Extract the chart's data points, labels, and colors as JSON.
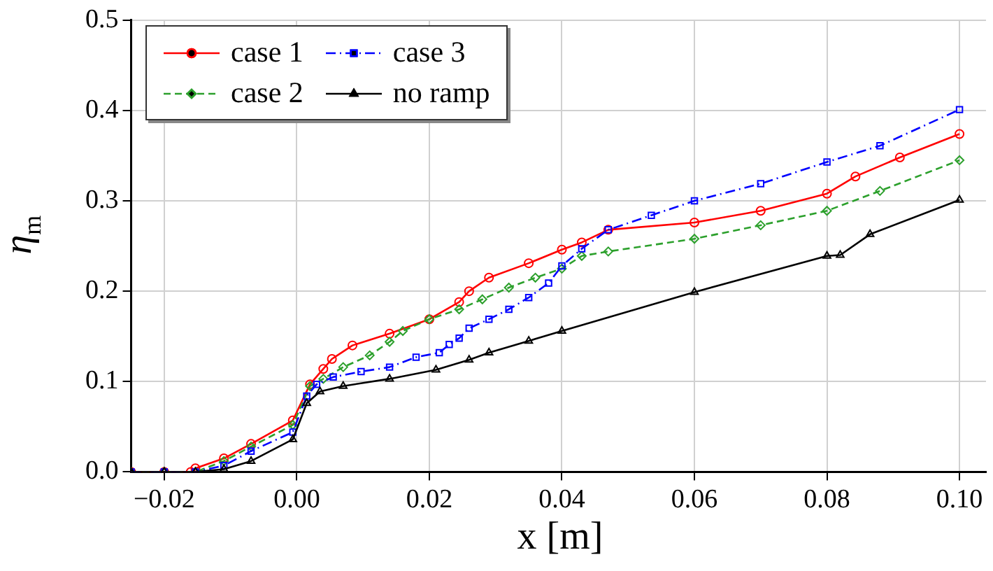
{
  "chart_data": {
    "type": "line",
    "xlabel": "x [m]",
    "ylabel": "η$_{m}$",
    "xlim": [
      -0.025,
      0.104
    ],
    "xticks": [
      {
        "value": -0.02,
        "label": "−0.02"
      },
      {
        "value": 0,
        "label": "0.00"
      },
      {
        "value": 0.02,
        "label": "0.02"
      },
      {
        "value": 0.04,
        "label": "0.04"
      },
      {
        "value": 0.06,
        "label": "0.06"
      },
      {
        "value": 0.08,
        "label": "0.08"
      },
      {
        "value": 0.1,
        "label": "0.10"
      }
    ],
    "ylim": [
      0,
      0.5
    ],
    "yticks": [
      {
        "value": 0,
        "label": "0.0"
      },
      {
        "value": 0.1,
        "label": "0.1"
      },
      {
        "value": 0.2,
        "label": "0.2"
      },
      {
        "value": 0.3,
        "label": "0.3"
      },
      {
        "value": 0.4,
        "label": "0.4"
      },
      {
        "value": 0.5,
        "label": "0.5"
      }
    ],
    "grid": true,
    "legend": "top left",
    "series": [
      {
        "name": "case 1",
        "color": "#ff0000",
        "marker": "circle",
        "line_style": "solid",
        "x": [
          -0.025,
          -0.02,
          -0.016,
          -0.0153,
          -0.011,
          -0.0069,
          -0.0006,
          0.002,
          0.004,
          0.0053,
          0.0084,
          0.014,
          0.02,
          0.0245,
          0.026,
          0.029,
          0.035,
          0.04,
          0.043,
          0.047,
          0.06,
          0.07,
          0.08,
          0.0843,
          0.091,
          0.1
        ],
        "values": [
          0,
          0,
          0,
          0.004,
          0.015,
          0.031,
          0.057,
          0.097,
          0.114,
          0.125,
          0.14,
          0.153,
          0.169,
          0.188,
          0.2,
          0.215,
          0.231,
          0.246,
          0.254,
          0.268,
          0.276,
          0.289,
          0.308,
          0.327,
          0.348,
          0.374
        ]
      },
      {
        "name": "case 2",
        "color": "#2ca02c",
        "marker": "diamond",
        "line_style": "dashed",
        "x": [
          -0.025,
          -0.02,
          -0.0153,
          -0.011,
          -0.0069,
          -0.0006,
          0.002,
          0.004,
          0.007,
          0.011,
          0.014,
          0.016,
          0.02,
          0.0245,
          0.028,
          0.032,
          0.036,
          0.04,
          0.043,
          0.047,
          0.06,
          0.07,
          0.08,
          0.088,
          0.1
        ],
        "values": [
          0,
          0,
          0,
          0.012,
          0.028,
          0.052,
          0.095,
          0.103,
          0.116,
          0.129,
          0.144,
          0.156,
          0.169,
          0.18,
          0.191,
          0.204,
          0.215,
          0.225,
          0.239,
          0.244,
          0.258,
          0.273,
          0.289,
          0.311,
          0.345
        ]
      },
      {
        "name": "case 3",
        "color": "#0000ff",
        "marker": "square",
        "line_style": "dashdot",
        "x": [
          -0.025,
          -0.02,
          -0.0153,
          -0.011,
          -0.0069,
          -0.0006,
          0.0015,
          0.003,
          0.0055,
          0.0097,
          0.014,
          0.018,
          0.0215,
          0.023,
          0.0245,
          0.026,
          0.029,
          0.032,
          0.035,
          0.038,
          0.04,
          0.043,
          0.047,
          0.0535,
          0.06,
          0.07,
          0.08,
          0.088,
          0.1
        ],
        "values": [
          0,
          0,
          0,
          0.007,
          0.023,
          0.044,
          0.084,
          0.097,
          0.105,
          0.111,
          0.116,
          0.127,
          0.132,
          0.141,
          0.148,
          0.159,
          0.169,
          0.18,
          0.193,
          0.209,
          0.228,
          0.247,
          0.268,
          0.284,
          0.3,
          0.319,
          0.343,
          0.361,
          0.401
        ]
      },
      {
        "name": "no ramp",
        "color": "#000000",
        "marker": "triangle",
        "line_style": "solid",
        "x": [
          -0.025,
          -0.02,
          -0.0153,
          -0.011,
          -0.0069,
          -0.0006,
          0.0015,
          0.0035,
          0.007,
          0.014,
          0.021,
          0.026,
          0.029,
          0.035,
          0.04,
          0.06,
          0.08,
          0.082,
          0.0865,
          0.1
        ],
        "values": [
          0,
          0,
          0,
          0.003,
          0.012,
          0.036,
          0.076,
          0.089,
          0.095,
          0.103,
          0.113,
          0.124,
          0.132,
          0.145,
          0.156,
          0.199,
          0.239,
          0.24,
          0.263,
          0.301
        ]
      }
    ]
  }
}
